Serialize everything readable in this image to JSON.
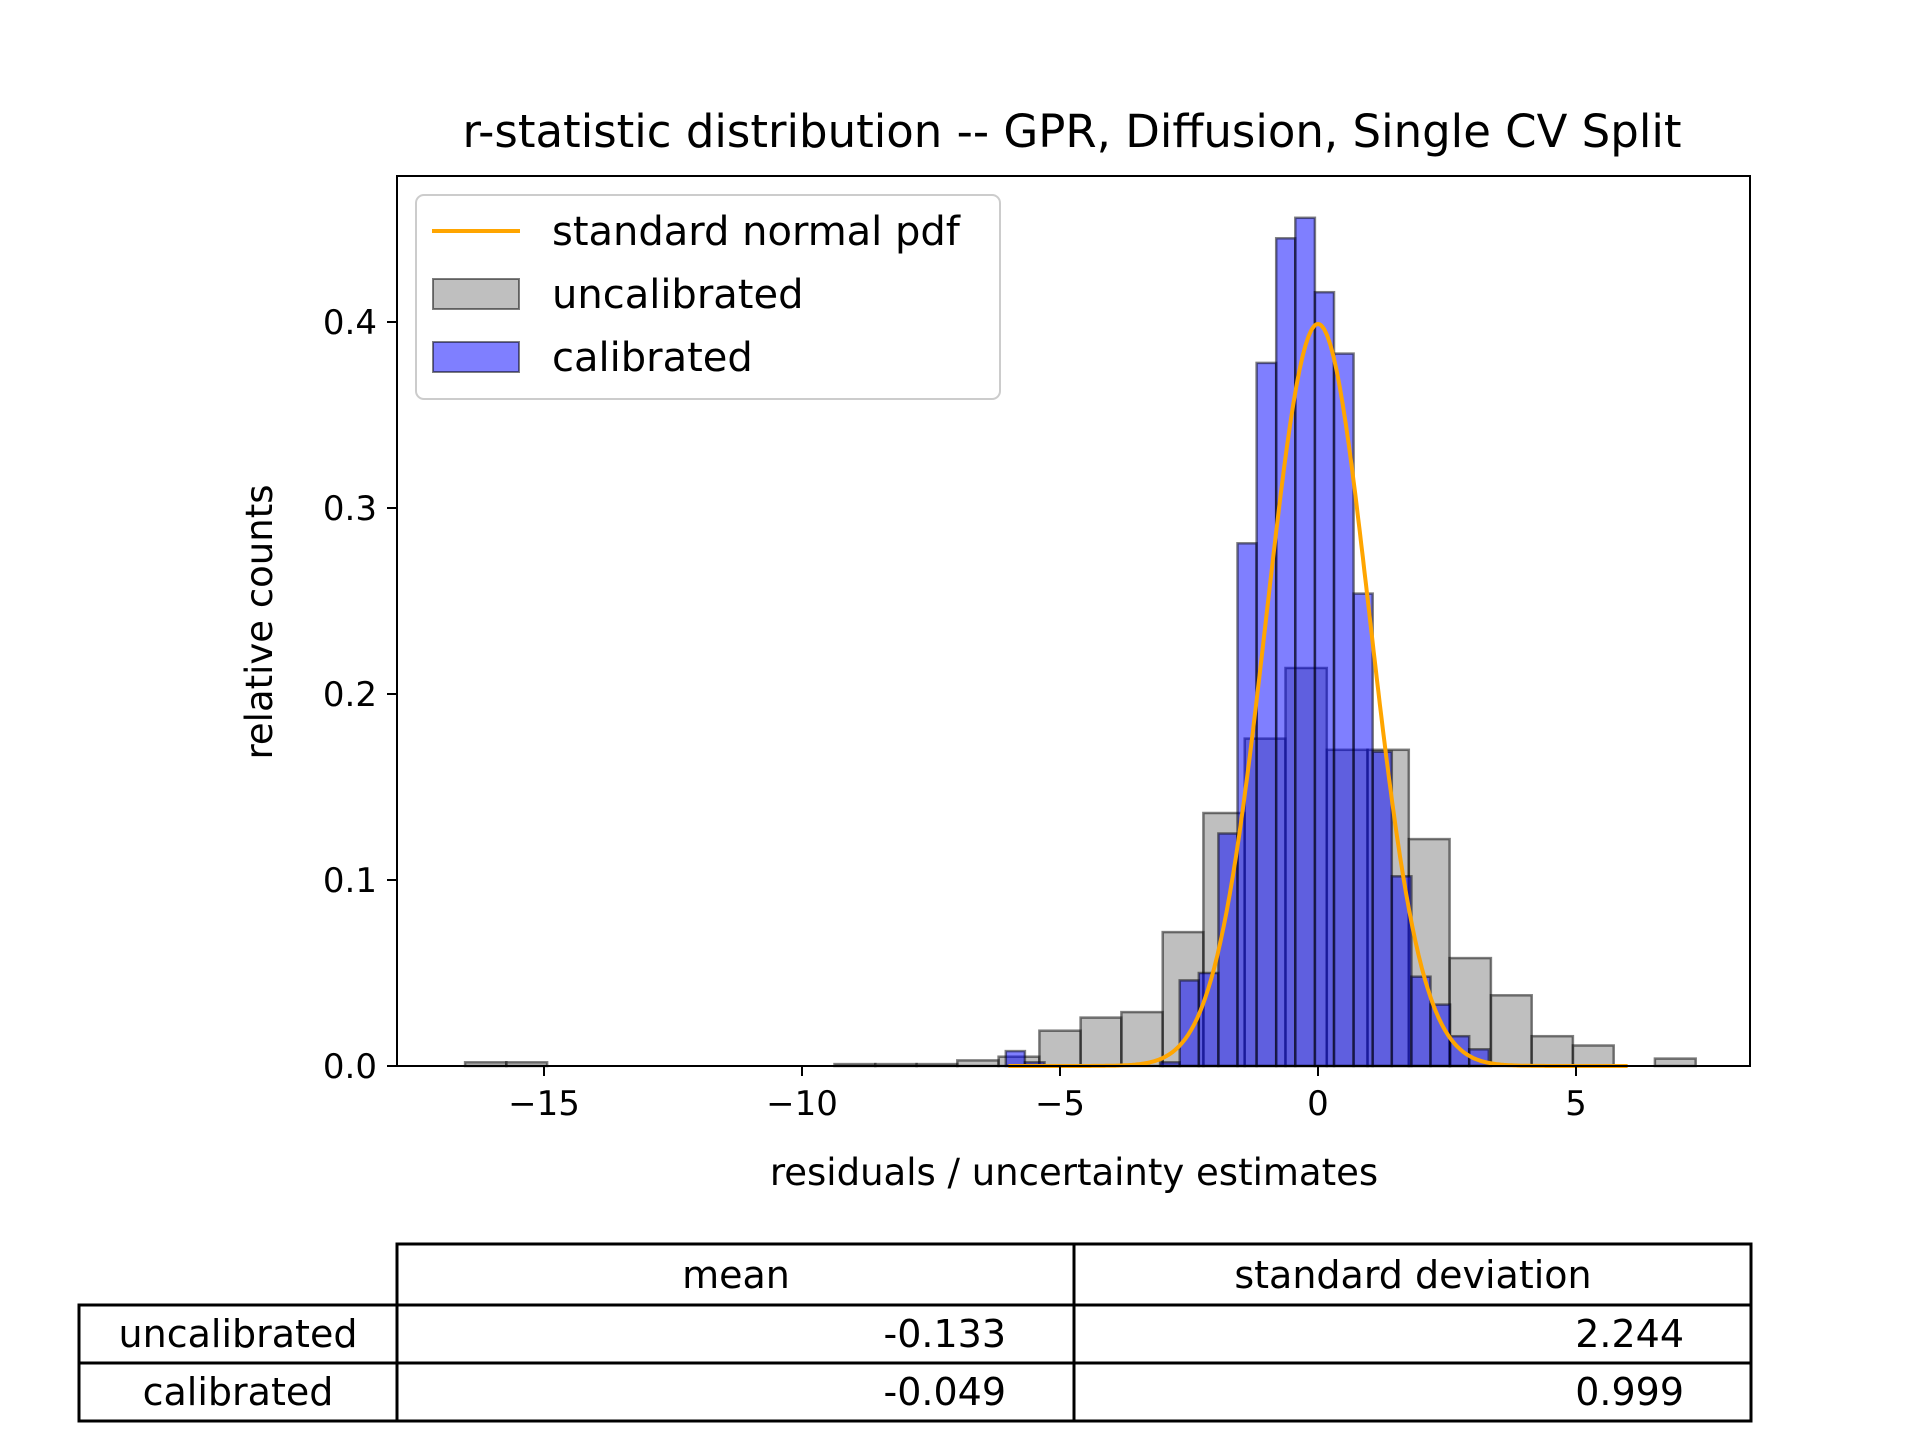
{
  "chart_data": {
    "type": "bar",
    "title": "r-statistic distribution -- GPR, Diffusion, Single CV Split",
    "xlabel": "residuals / uncertainty estimates",
    "ylabel": "relative counts",
    "xlim": [
      -17.5,
      8.5
    ],
    "ylim": [
      0,
      0.48
    ],
    "xticks": [
      -15,
      -10,
      -5,
      0,
      5
    ],
    "xtick_labels": [
      "−15",
      "−10",
      "−5",
      "0",
      "5"
    ],
    "yticks": [
      0.0,
      0.1,
      0.2,
      0.3,
      0.4
    ],
    "ytick_labels": [
      "0.0",
      "0.1",
      "0.2",
      "0.3",
      "0.4"
    ],
    "grid": false,
    "legend_position": "top-left",
    "legend": [
      "standard normal pdf",
      "uncalibrated",
      "calibrated"
    ],
    "series": [
      {
        "name": "uncalibrated",
        "color": "#808080",
        "fill_opacity": 0.5,
        "bin_edges": [
          -16.53,
          -15.73,
          -14.94,
          -14.14,
          -13.35,
          -12.55,
          -11.76,
          -10.96,
          -10.17,
          -9.37,
          -8.58,
          -7.78,
          -6.99,
          -6.19,
          -5.4,
          -4.6,
          -3.81,
          -3.01,
          -2.22,
          -1.42,
          -0.63,
          0.17,
          0.96,
          1.76,
          2.55,
          3.35,
          4.14,
          4.94,
          5.73,
          6.53,
          7.32
        ],
        "values": [
          0.002,
          0.002,
          0,
          0,
          0,
          0,
          0,
          0,
          0,
          0.001,
          0.001,
          0.001,
          0.003,
          0.005,
          0.019,
          0.026,
          0.029,
          0.072,
          0.136,
          0.176,
          0.214,
          0.17,
          0.17,
          0.122,
          0.058,
          0.038,
          0.016,
          0.011,
          0,
          0.004
        ]
      },
      {
        "name": "calibrated",
        "color": "#0000ff",
        "fill_opacity": 0.5,
        "bin_edges": [
          -6.05,
          -5.68,
          -5.3,
          -4.93,
          -4.55,
          -4.18,
          -3.81,
          -3.43,
          -3.06,
          -2.68,
          -2.31,
          -1.93,
          -1.56,
          -1.19,
          -0.81,
          -0.44,
          -0.06,
          0.31,
          0.69,
          1.06,
          1.43,
          1.81,
          2.18,
          2.56,
          2.93,
          3.31
        ],
        "values": [
          0.008,
          0.002,
          0,
          0,
          0,
          0,
          0,
          0,
          0.002,
          0.046,
          0.05,
          0.125,
          0.281,
          0.378,
          0.445,
          0.456,
          0.416,
          0.383,
          0.254,
          0.169,
          0.102,
          0.048,
          0.033,
          0.016,
          0.009,
          0.002
        ]
      },
      {
        "name": "standard normal pdf",
        "type": "line",
        "color": "#ffa500",
        "function": "standard_normal_pdf",
        "x_range": [
          -6,
          6
        ]
      }
    ]
  },
  "table": {
    "columns": [
      "mean",
      "standard deviation"
    ],
    "rows": [
      {
        "label": "uncalibrated",
        "mean": "-0.133",
        "std": "2.244"
      },
      {
        "label": "calibrated",
        "mean": "-0.049",
        "std": "0.999"
      }
    ]
  }
}
